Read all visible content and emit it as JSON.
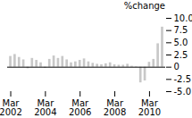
{
  "chart_data": {
    "type": "bar",
    "title": "%change",
    "categories": [
      "Mar\n2002",
      null,
      null,
      null,
      null,
      null,
      null,
      null,
      "Mar\n2004",
      null,
      null,
      null,
      null,
      null,
      null,
      null,
      "Mar\n2006",
      null,
      null,
      null,
      null,
      null,
      null,
      null,
      "Mar\n2008",
      null,
      null,
      null,
      null,
      null,
      null,
      null,
      "Mar\n2010",
      null,
      null,
      null
    ],
    "values": [
      2.2,
      2.6,
      2.0,
      1.5,
      -0.3,
      1.8,
      1.4,
      0.9,
      -0.2,
      1.6,
      2.3,
      1.8,
      2.2,
      1.5,
      0.9,
      1.1,
      1.4,
      1.7,
      1.1,
      0.8,
      0.6,
      0.5,
      0.7,
      0.9,
      0.5,
      0.4,
      0.4,
      0.6,
      0.2,
      0.1,
      -3.2,
      -2.8,
      1.0,
      1.6,
      4.8,
      8.2
    ],
    "color": "#c8c8c8",
    "ylim": [
      -5.0,
      10.0
    ],
    "yticks": [
      {
        "value": -5.0,
        "label": "-5.0"
      },
      -2.5,
      0,
      2.5,
      {
        "value": 5.0,
        "label": "5.0"
      },
      7.5,
      {
        "value": 10.0,
        "label": "10.0"
      }
    ],
    "grid": false
  }
}
